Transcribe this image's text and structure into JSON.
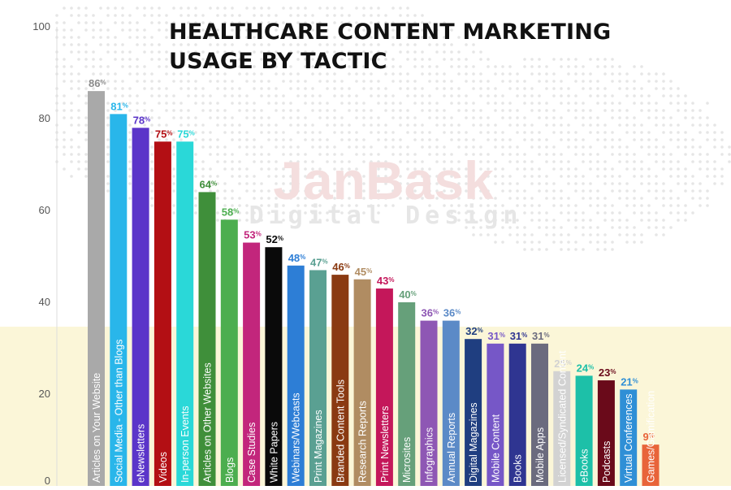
{
  "title": "HEALTHCARE CONTENT MARKETING USAGE BY TACTIC",
  "watermark": {
    "line1": "JanBask",
    "line2": "Digital Design"
  },
  "chart_data": {
    "type": "bar",
    "title": "HEALTHCARE CONTENT MARKETING USAGE BY TACTIC",
    "xlabel": "",
    "ylabel": "",
    "ylim": [
      0,
      100
    ],
    "yticks": [
      "0",
      "20",
      "40",
      "60",
      "80",
      "100"
    ],
    "grid": false,
    "value_unit": "%",
    "categories": [
      "Articles on Your Website",
      "Social Media - Other than Blogs",
      "eNewsletters",
      "Videos",
      "In-person Events",
      "Articles on Other Websites",
      "Blogs",
      "Case Studies",
      "White Papers",
      "Webinars/Webcasts",
      "Print Magazines",
      "Branded Content Tools",
      "Research Reports",
      "Print Newsletters",
      "Microsites",
      "Infographics",
      "Annual Reports",
      "Digital Magazines",
      "Mobile Content",
      "Books",
      "Mobile Apps",
      "Licensed/Syndicated Content",
      "eBooks",
      "Podcasts",
      "Virtual Conferences",
      "Games/Gamification"
    ],
    "values": [
      86,
      81,
      78,
      75,
      75,
      64,
      58,
      53,
      52,
      48,
      47,
      46,
      45,
      43,
      40,
      36,
      36,
      32,
      31,
      31,
      31,
      25,
      24,
      23,
      21,
      9
    ],
    "colors": [
      "#a9a9a9",
      "#29b6ea",
      "#5b35c9",
      "#b30f14",
      "#2ad8d8",
      "#3f8f3a",
      "#4cae4f",
      "#c2267c",
      "#0a0a0a",
      "#2d7ed6",
      "#5aa092",
      "#8a3a12",
      "#b08c62",
      "#c4175a",
      "#66a07a",
      "#8e57b4",
      "#5b8ac7",
      "#1f3e80",
      "#7657c7",
      "#2f3591",
      "#6b6b7e",
      "#d2d2d2",
      "#1dc0a8",
      "#6a0a1a",
      "#2f8fd6",
      "#e8643a"
    ],
    "value_label_colors": [
      "#8a8a8a",
      "#29b6ea",
      "#5b35c9",
      "#b30f14",
      "#2ad8d8",
      "#3f8f3a",
      "#4cae4f",
      "#c2267c",
      "#0a0a0a",
      "#2d7ed6",
      "#5aa092",
      "#8a3a12",
      "#b08c62",
      "#c4175a",
      "#66a07a",
      "#8e57b4",
      "#5b8ac7",
      "#1f3e80",
      "#7657c7",
      "#2f3591",
      "#6b6b7e",
      "#d2d2d2",
      "#1dc0a8",
      "#6a0a1a",
      "#2f8fd6",
      "#e8643a"
    ],
    "category_label_colors": [
      "#111111",
      "#111111",
      "#ffffff",
      "#ffffff",
      "#111111",
      "#ffffff",
      "#ffffff",
      "#ffffff",
      "#ffffff",
      "#ffffff",
      "#ffffff",
      "#ffffff",
      "#ffffff",
      "#ffffff",
      "#ffffff",
      "#ffffff",
      "#ffffff",
      "#ffffff",
      "#ffffff",
      "#ffffff",
      "#ffffff",
      "#111111",
      "#ffffff",
      "#ffffff",
      "#ffffff",
      "#111111"
    ]
  }
}
